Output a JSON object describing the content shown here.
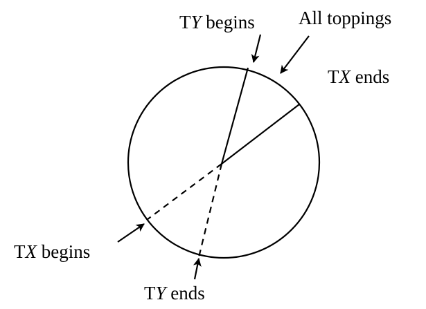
{
  "labels": {
    "ty_begins": {
      "prefix": "T",
      "var": "Y",
      "suffix": " begins"
    },
    "all_toppings": "All toppings",
    "tx_ends": {
      "prefix": "T",
      "var": "X",
      "suffix": " ends"
    },
    "tx_begins": {
      "prefix": "T",
      "var": "X",
      "suffix": " begins"
    },
    "ty_ends": {
      "prefix": "T",
      "var": "Y",
      "suffix": " ends"
    }
  },
  "colors": {
    "ink": "#000000",
    "background": "#ffffff"
  }
}
